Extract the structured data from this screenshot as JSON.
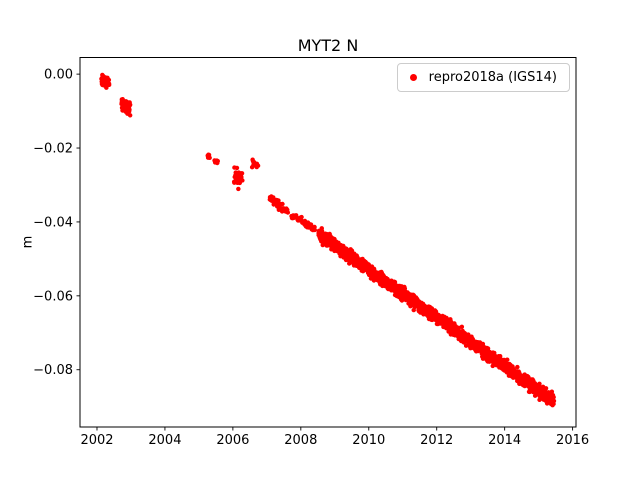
{
  "figure": {
    "background": "#ffffff"
  },
  "chart_data": {
    "type": "scatter",
    "title": "MYT2 N",
    "xlabel": "",
    "ylabel": "m",
    "grid": false,
    "xlim": [
      2001.5,
      2016.1
    ],
    "ylim": [
      -0.0955,
      0.0045
    ],
    "xticks": [
      2002,
      2004,
      2006,
      2008,
      2010,
      2012,
      2014,
      2016
    ],
    "xtick_labels": [
      "2002",
      "2004",
      "2006",
      "2008",
      "2010",
      "2012",
      "2014",
      "2016"
    ],
    "yticks": [
      0.0,
      -0.02,
      -0.04,
      -0.06,
      -0.08
    ],
    "ytick_labels": [
      "0.00",
      "−0.02",
      "−0.04",
      "−0.06",
      "−0.08"
    ],
    "legend": {
      "position": "upper right",
      "entries": [
        {
          "label": "repro2018a (IGS14)",
          "color": "#ff0000",
          "marker": "dot"
        }
      ]
    },
    "series": [
      {
        "name": "repro2018a (IGS14)",
        "color": "#ff0000",
        "marker": "dot",
        "segments": [
          {
            "x_start": 2002.13,
            "x_end": 2002.36,
            "y_start": -0.0015,
            "y_end": -0.002,
            "y_scatter": 0.0022,
            "n": 50
          },
          {
            "x_start": 2002.72,
            "x_end": 2002.98,
            "y_start": -0.0082,
            "y_end": -0.009,
            "y_scatter": 0.0035,
            "n": 65
          },
          {
            "x_start": 2005.25,
            "x_end": 2005.32,
            "y_start": -0.0222,
            "y_end": -0.0224,
            "y_scatter": 0.0007,
            "n": 5
          },
          {
            "x_start": 2005.46,
            "x_end": 2005.56,
            "y_start": -0.0234,
            "y_end": -0.0238,
            "y_scatter": 0.0008,
            "n": 7
          },
          {
            "x_start": 2006.03,
            "x_end": 2006.28,
            "y_start": -0.0275,
            "y_end": -0.0282,
            "y_scatter": 0.004,
            "n": 35
          },
          {
            "x_start": 2006.56,
            "x_end": 2006.74,
            "y_start": -0.024,
            "y_end": -0.0246,
            "y_scatter": 0.0015,
            "n": 14
          },
          {
            "x_start": 2007.08,
            "x_end": 2007.62,
            "y_start": -0.0335,
            "y_end": -0.0372,
            "y_scatter": 0.002,
            "n": 45
          },
          {
            "x_start": 2007.72,
            "x_end": 2008.42,
            "y_start": -0.0385,
            "y_end": -0.0418,
            "y_scatter": 0.0016,
            "n": 50
          },
          {
            "x_start": 2008.52,
            "x_end": 2015.45,
            "y_start": -0.0432,
            "y_end": -0.0885,
            "y_scatter": 0.0025,
            "n": 1800
          }
        ]
      }
    ]
  }
}
